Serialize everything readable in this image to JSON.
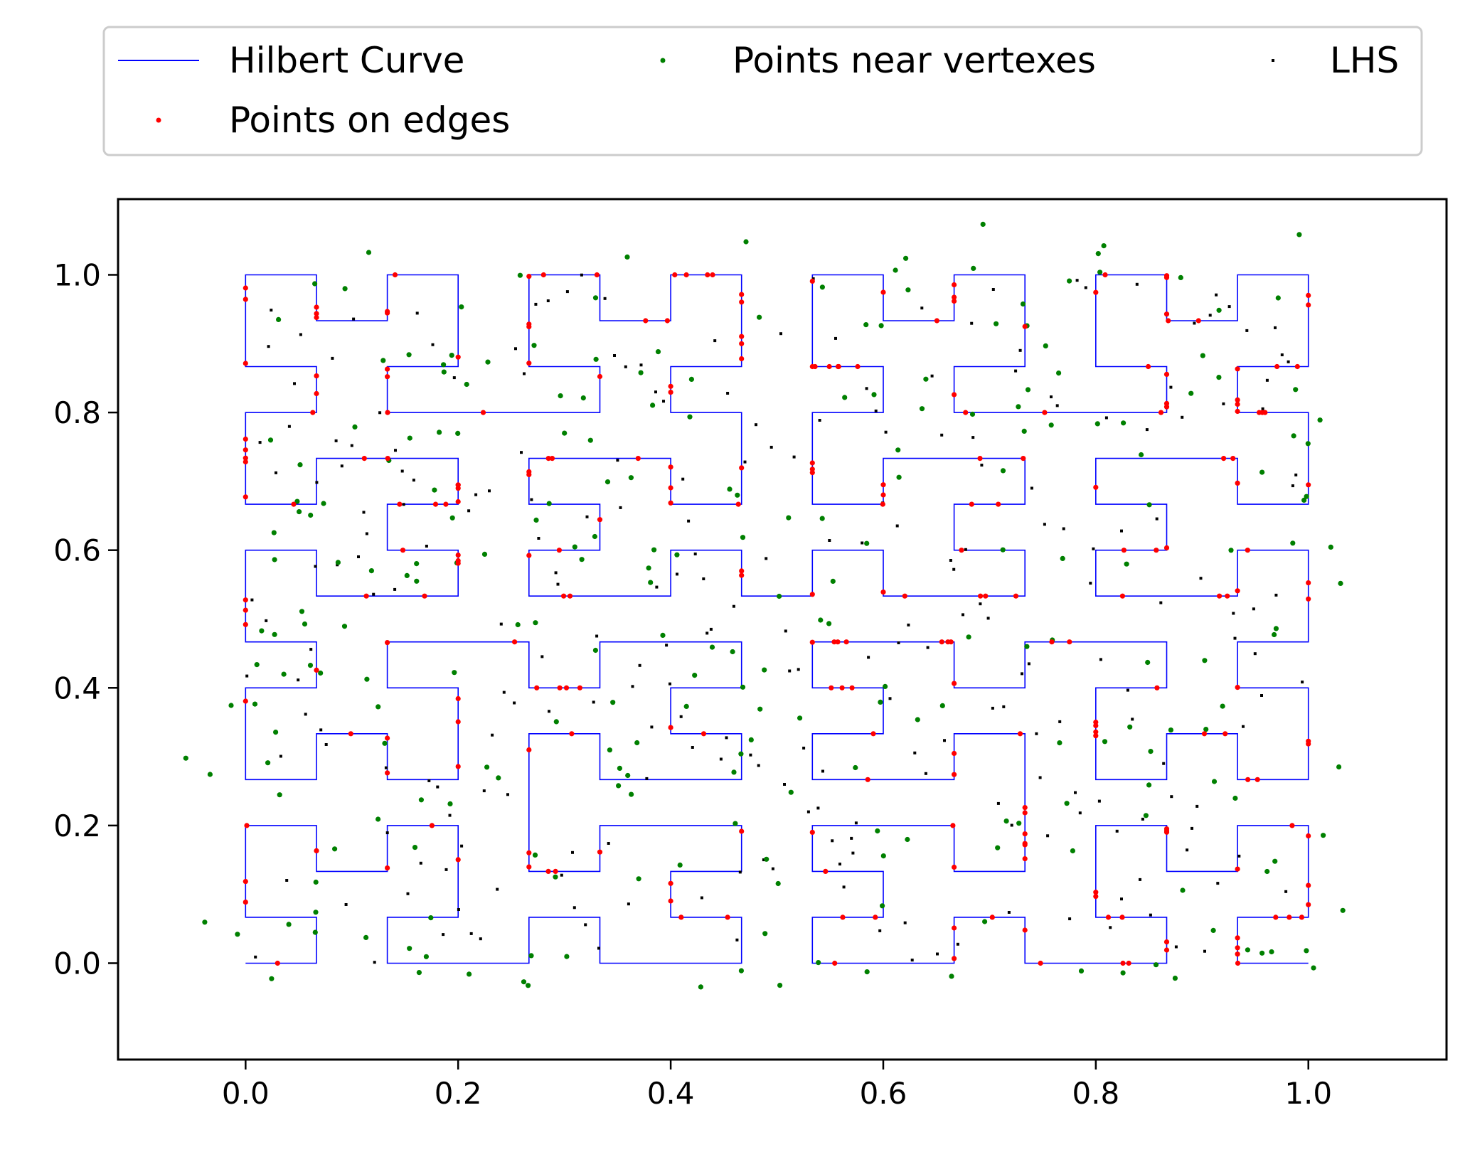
{
  "chart_data": {
    "type": "scatter",
    "title": "",
    "xlabel": "",
    "ylabel": "",
    "xlim": [
      -0.12,
      1.13
    ],
    "ylim": [
      -0.14,
      1.11
    ],
    "xticks": [
      0.0,
      0.2,
      0.4,
      0.6,
      0.8,
      1.0
    ],
    "yticks": [
      0.0,
      0.2,
      0.4,
      0.6,
      0.8,
      1.0
    ],
    "xtick_labels": [
      "0.0",
      "0.2",
      "0.4",
      "0.6",
      "0.8",
      "1.0"
    ],
    "ytick_labels": [
      "0.0",
      "0.2",
      "0.4",
      "0.6",
      "0.8",
      "1.0"
    ],
    "grid": false,
    "legend": {
      "placement": "top",
      "columns": 3
    },
    "series": [
      {
        "name": "Hilbert Curve",
        "kind": "line",
        "color": "#0000ff",
        "hilbert_order": 4,
        "x_range": [
          0,
          1
        ],
        "y_range": [
          0,
          1
        ]
      },
      {
        "name": "Points on edges",
        "kind": "scatter",
        "color": "#ff0000",
        "count": 256
      },
      {
        "name": "Points near vertexes",
        "kind": "scatter",
        "color": "#008000",
        "count": 256
      },
      {
        "name": "LHS",
        "kind": "scatter",
        "color": "#000000",
        "count": 256
      }
    ]
  }
}
